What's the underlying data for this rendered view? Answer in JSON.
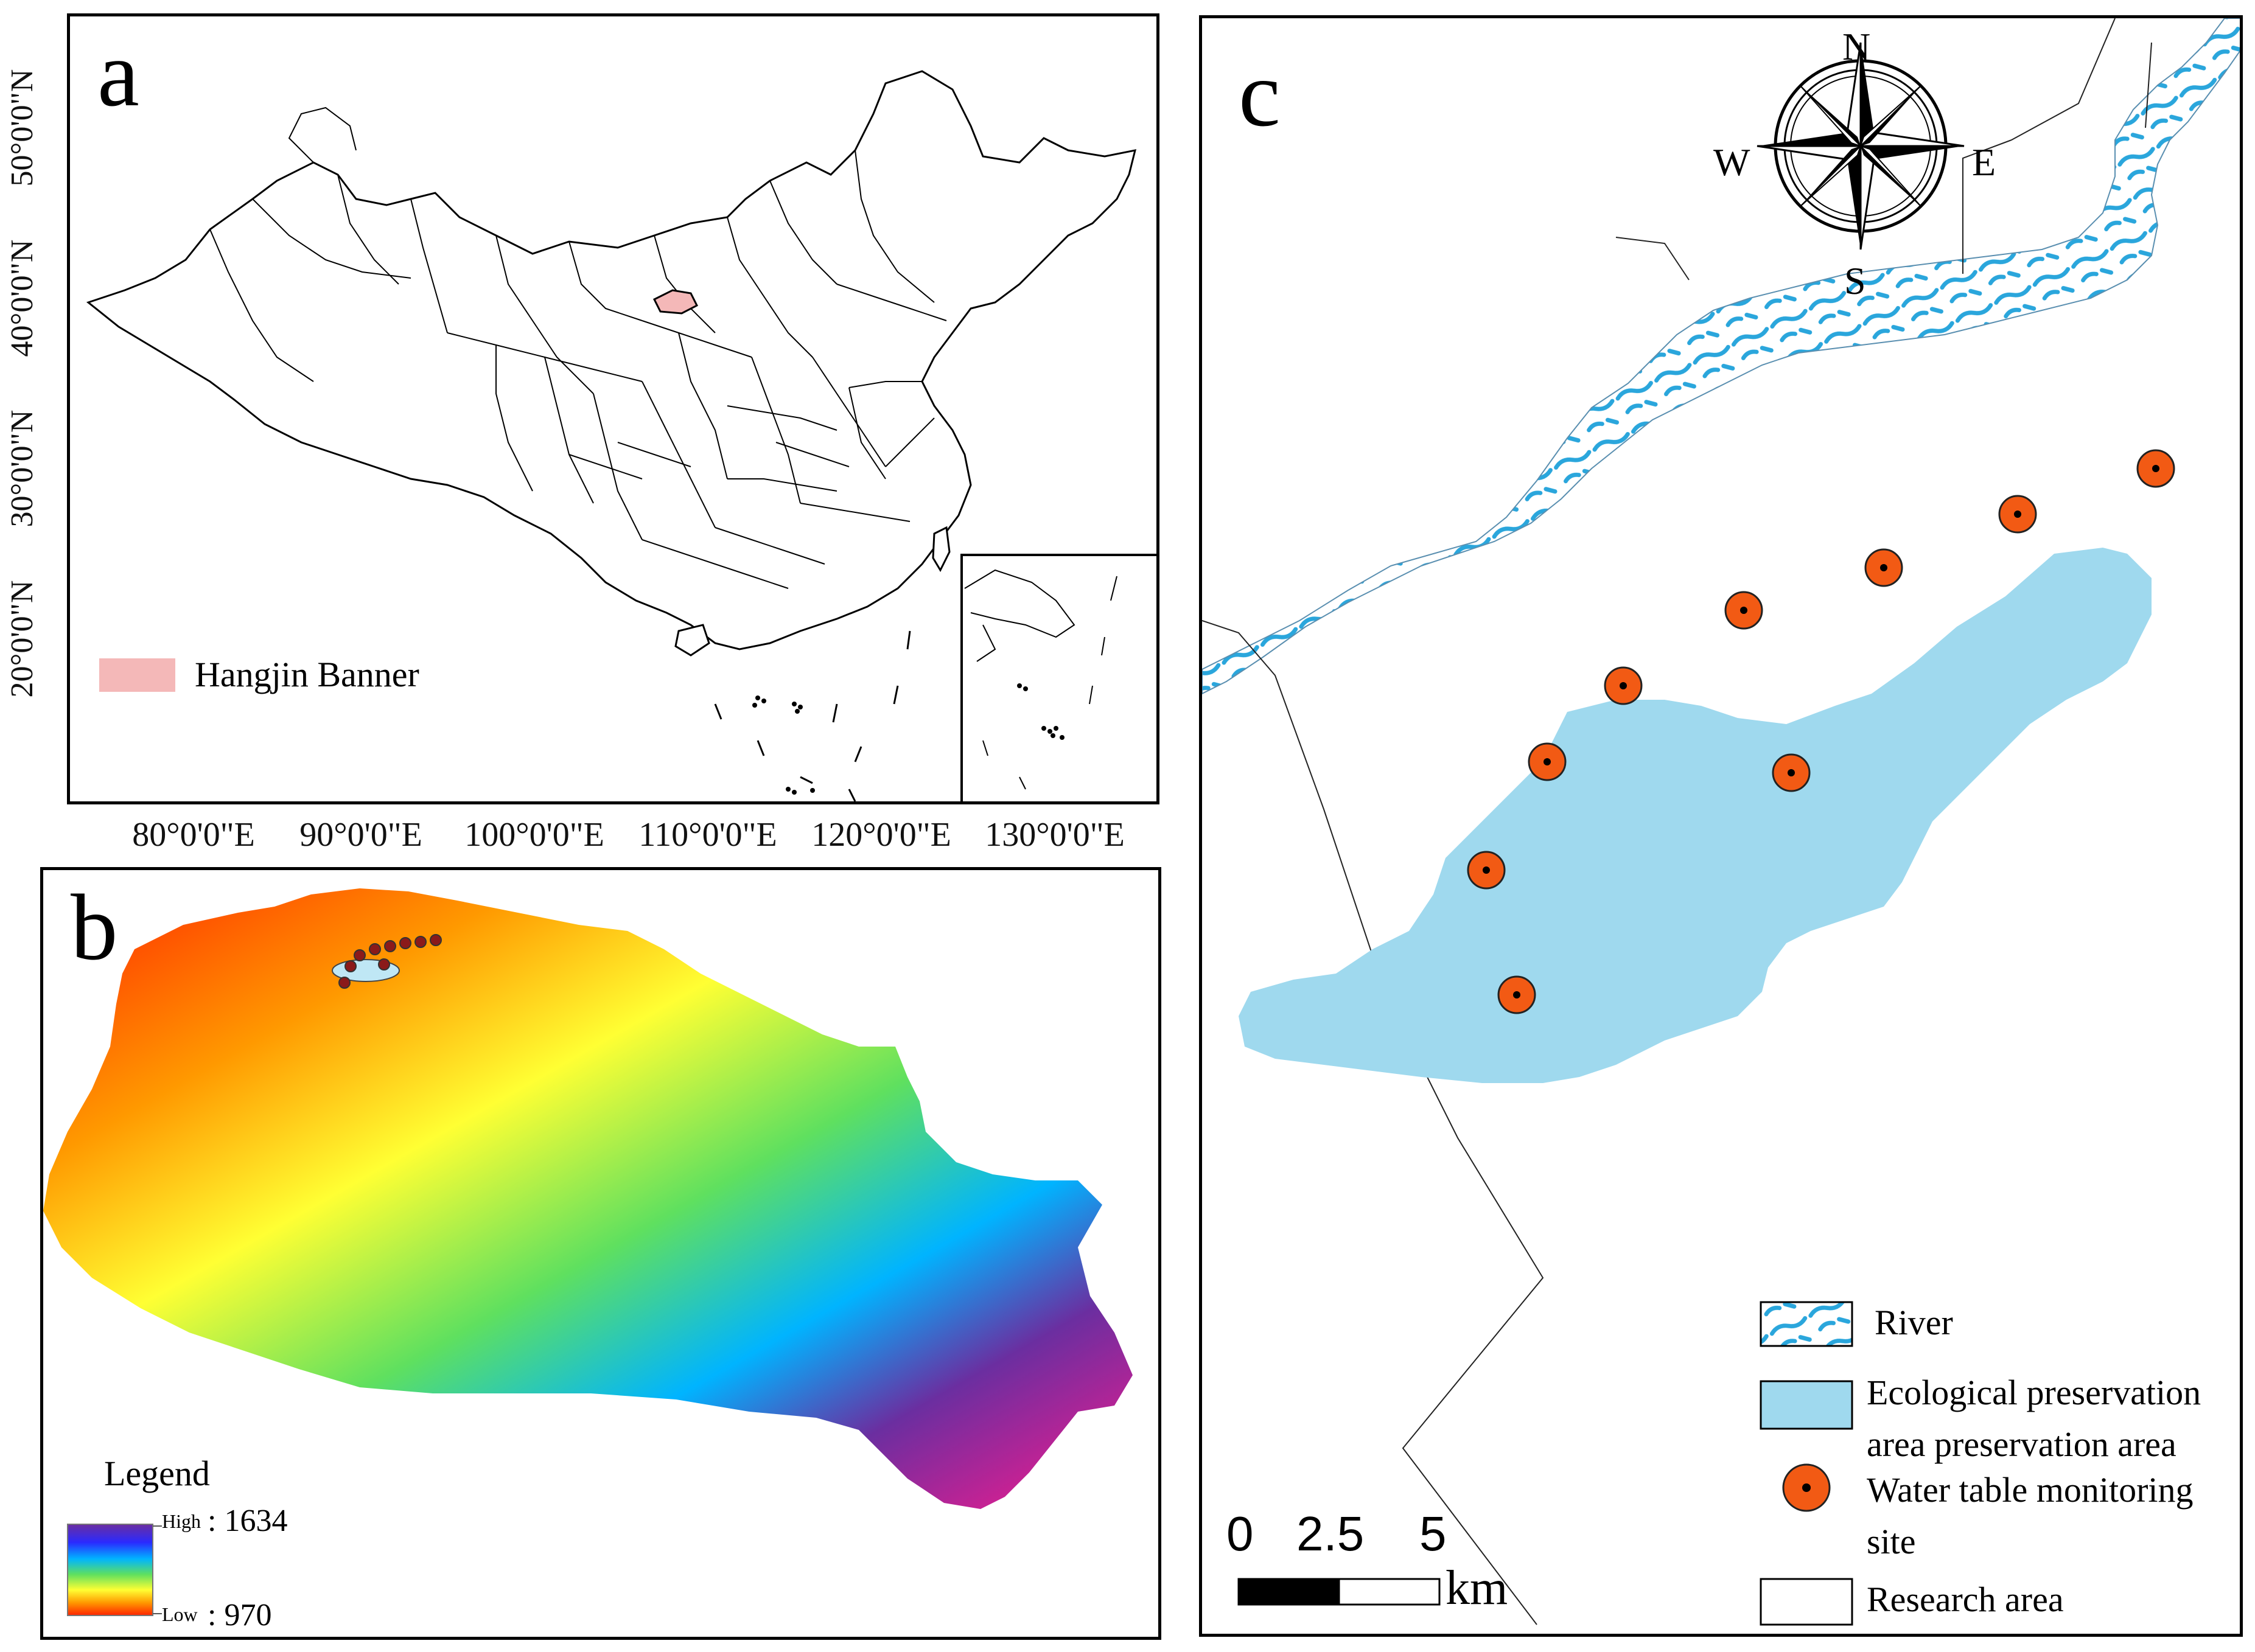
{
  "panel_a": {
    "letter": "a",
    "legend_label": "Hangjin Banner",
    "highlight_color": "#f4b8b8",
    "lon_labels": [
      "80°0'0\"E",
      "90°0'0\"E",
      "100°0'0\"E",
      "110°0'0\"E",
      "120°0'0\"E",
      "130°0'0\"E"
    ],
    "lat_labels": [
      "50°0'0\"N",
      "40°0'0\"N",
      "30°0'0\"N",
      "20°0'0\"N"
    ]
  },
  "panel_b": {
    "letter": "b",
    "legend_title": "Legend",
    "high_label": "High",
    "high_value": ": 1634",
    "low_label": "Low",
    "low_value": ": 970",
    "colors": [
      "#6b2ea0",
      "#2a2aff",
      "#00b4ff",
      "#5fe05f",
      "#ffff33",
      "#ff9900",
      "#ff2200",
      "#ff1a8c"
    ]
  },
  "panel_c": {
    "letter": "c",
    "compass": {
      "n": "N",
      "s": "S",
      "e": "E",
      "w": "W"
    },
    "scale": {
      "labels": [
        "0",
        "2.5",
        "5"
      ],
      "unit": "km"
    },
    "legend": {
      "river": "River",
      "eco_line1": "Ecological preservation",
      "eco_line2": "area preservation area",
      "wt_line1": "Water table monitoring",
      "wt_line2": "site",
      "research": "Research area"
    },
    "colors": {
      "river": "#2aa6dc",
      "preservation": "#9fd9ee",
      "site": "#f25a14"
    }
  }
}
